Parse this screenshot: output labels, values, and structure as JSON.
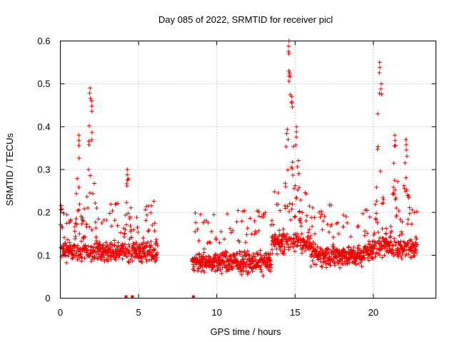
{
  "chart_data": {
    "type": "scatter",
    "title": "Day 085 of 2022, SRMTID for receiver picl",
    "xlabel": "GPS time / hours",
    "ylabel": "SRMTID / TECUs",
    "xlim": [
      0,
      24
    ],
    "ylim": [
      0,
      0.6
    ],
    "xticks": [
      0,
      5,
      10,
      15,
      20
    ],
    "xtick_labels": [
      "0",
      "5",
      "10",
      "15",
      "20"
    ],
    "yticks": [
      0,
      0.1,
      0.2,
      0.3,
      0.4,
      0.5,
      0.6
    ],
    "ytick_labels": [
      "0",
      "0.1",
      "0.2",
      "0.3",
      "0.4",
      "0.5",
      "0.6"
    ],
    "grid": true,
    "marker": "plus",
    "color": "#ee0000",
    "series": [
      {
        "name": "SRMTID",
        "data_gaps_hours": [
          [
            6.2,
            8.4
          ],
          [
            22.8,
            24
          ]
        ],
        "zero_values_x": [
          4.2,
          4.6,
          8.5
        ],
        "peaks": [
          {
            "x": 1.2,
            "y": 0.38
          },
          {
            "x": 1.9,
            "y": 0.49
          },
          {
            "x": 2.0,
            "y": 0.46
          },
          {
            "x": 4.3,
            "y": 0.3
          },
          {
            "x": 14.6,
            "y": 0.6
          },
          {
            "x": 14.6,
            "y": 0.53
          },
          {
            "x": 14.8,
            "y": 0.47
          },
          {
            "x": 15.1,
            "y": 0.4
          },
          {
            "x": 20.4,
            "y": 0.55
          },
          {
            "x": 20.5,
            "y": 0.5
          },
          {
            "x": 21.4,
            "y": 0.38
          },
          {
            "x": 22.1,
            "y": 0.37
          }
        ]
      }
    ]
  }
}
